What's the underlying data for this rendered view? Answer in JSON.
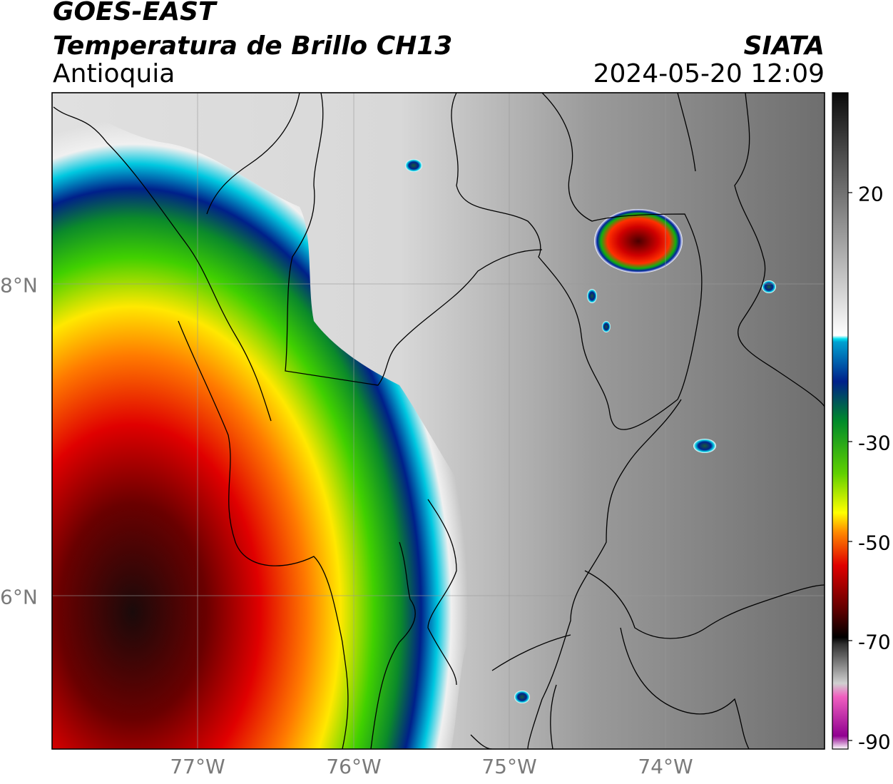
{
  "header": {
    "title_line1": "GOES-EAST",
    "title_line2": "Temperatura de Brillo CH13",
    "region": "Antioquia",
    "agency": "SIATA",
    "datetime": "2024-05-20 12:09"
  },
  "map": {
    "x_ticks": [
      "77°W",
      "76°W",
      "75°W",
      "74°W"
    ],
    "y_ticks": [
      "8°N",
      "6°N"
    ],
    "gridlines": true
  },
  "colorbar": {
    "tick_labels": [
      "20",
      "-30",
      "-50",
      "-70",
      "-90"
    ],
    "colors": {
      "warm_gray_top": "#1a1a1a",
      "white": "#f5f5f5",
      "cyan": "#00d0e8",
      "blue": "#00208a",
      "green": "#00c000",
      "yellow": "#ffff00",
      "orange": "#ff8800",
      "red": "#e00000",
      "dark_red": "#5a0000",
      "black": "#000000",
      "magenta": "#b000b0"
    }
  }
}
